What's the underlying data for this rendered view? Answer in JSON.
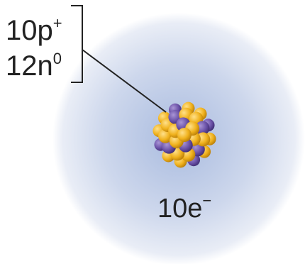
{
  "nucleus_label": {
    "protons": {
      "text": "10p",
      "superscript": "+"
    },
    "neutrons": {
      "text": "12n",
      "superscript": "0"
    }
  },
  "electron_label": {
    "text": "10e",
    "superscript": "−"
  }
}
